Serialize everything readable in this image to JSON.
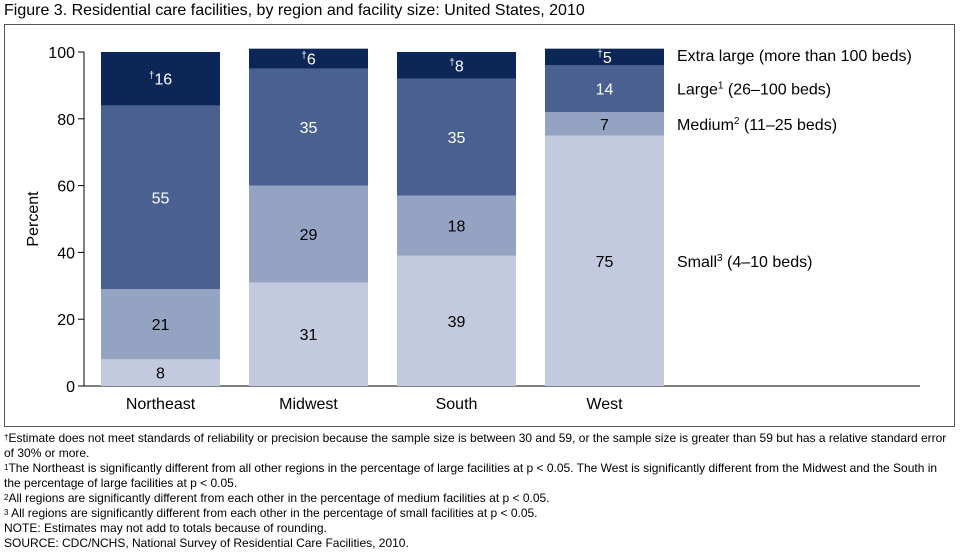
{
  "figure_title": "Figure 3. Residential care facilities, by region and facility size: United States, 2010",
  "colors": {
    "small": "#c3cadf",
    "medium": "#95a3c3",
    "large": "#4a6090",
    "extra_large": "#0c2658",
    "frame": "#555555"
  },
  "chart_data": {
    "type": "bar",
    "stacked": true,
    "title": "",
    "xlabel": "",
    "ylabel": "Percent",
    "ylim": [
      0,
      100
    ],
    "yticks": [
      0,
      20,
      40,
      60,
      80,
      100
    ],
    "grid": false,
    "legend_placement": "right of bars, aligned with segments",
    "categories": [
      "Northeast",
      "Midwest",
      "South",
      "West"
    ],
    "series": [
      {
        "key": "small",
        "name": "Small³ (4–10 beds)",
        "values": [
          8,
          31,
          39,
          75
        ],
        "labels": [
          "8",
          "31",
          "39",
          "75"
        ]
      },
      {
        "key": "medium",
        "name": "Medium² (11–25 beds)",
        "values": [
          21,
          29,
          18,
          7
        ],
        "labels": [
          "21",
          "29",
          "18",
          "7"
        ]
      },
      {
        "key": "large",
        "name": "Large¹ (26–100 beds)",
        "values": [
          55,
          35,
          35,
          14
        ],
        "labels": [
          "55",
          "35",
          "35",
          "14"
        ]
      },
      {
        "key": "extra_large",
        "name": "Extra large (more than 100 beds)",
        "values": [
          16,
          6,
          8,
          5
        ],
        "labels": [
          "†16",
          "†6",
          "†8",
          "†5"
        ]
      }
    ],
    "legend": [
      {
        "base": "Extra large (more than 100 beds)",
        "sup": "",
        "rest": ""
      },
      {
        "base": "Large",
        "sup": "1",
        "rest": " (26–100 beds)"
      },
      {
        "base": "Medium",
        "sup": "2",
        "rest": " (11–25 beds)"
      },
      {
        "base": "Small",
        "sup": "3",
        "rest": " (4–10 beds)"
      }
    ]
  },
  "notes": [
    {
      "sup": "†",
      "text": "Estimate does not meet standards of reliability or precision because the sample size is between 30 and 59, or the sample size is greater than 59 but has a relative standard error of 30% or more."
    },
    {
      "sup": "1",
      "text": "The Northeast is significantly different from all other regions in the percentage of large facilities at p < 0.05. The West is significantly different from the Midwest and the South in the percentage of large facilities at p < 0.05."
    },
    {
      "sup": "2",
      "text": "All regions are significantly different from each other in the percentage of medium facilities at p < 0.05."
    },
    {
      "sup": "3",
      "text": " All regions are significantly different from each other in the percentage of small facilities at p < 0.05."
    },
    {
      "sup": "",
      "text": "NOTE: Estimates may not add to totals because of rounding."
    },
    {
      "sup": "",
      "text": "SOURCE: CDC/NCHS, National Survey of Residential Care Facilities, 2010."
    }
  ]
}
